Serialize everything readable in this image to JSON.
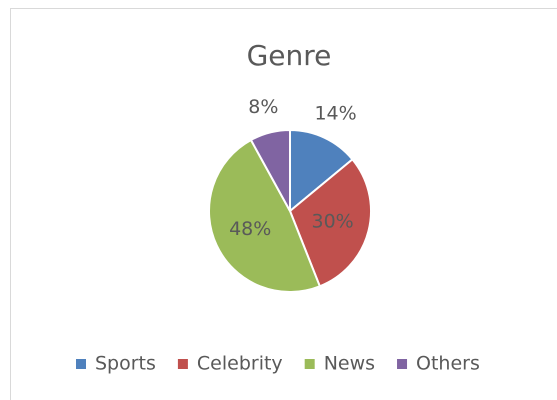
{
  "chart_data": {
    "type": "pie",
    "title": "Genre",
    "categories": [
      "Sports",
      "Celebrity",
      "News",
      "Others"
    ],
    "values": [
      14,
      30,
      48,
      8
    ],
    "value_labels": [
      "14%",
      "30%",
      "48%",
      "8%"
    ],
    "colors": [
      "#4f81bd",
      "#c0504d",
      "#9bbb59",
      "#8064a2"
    ],
    "legend": "bottom"
  }
}
